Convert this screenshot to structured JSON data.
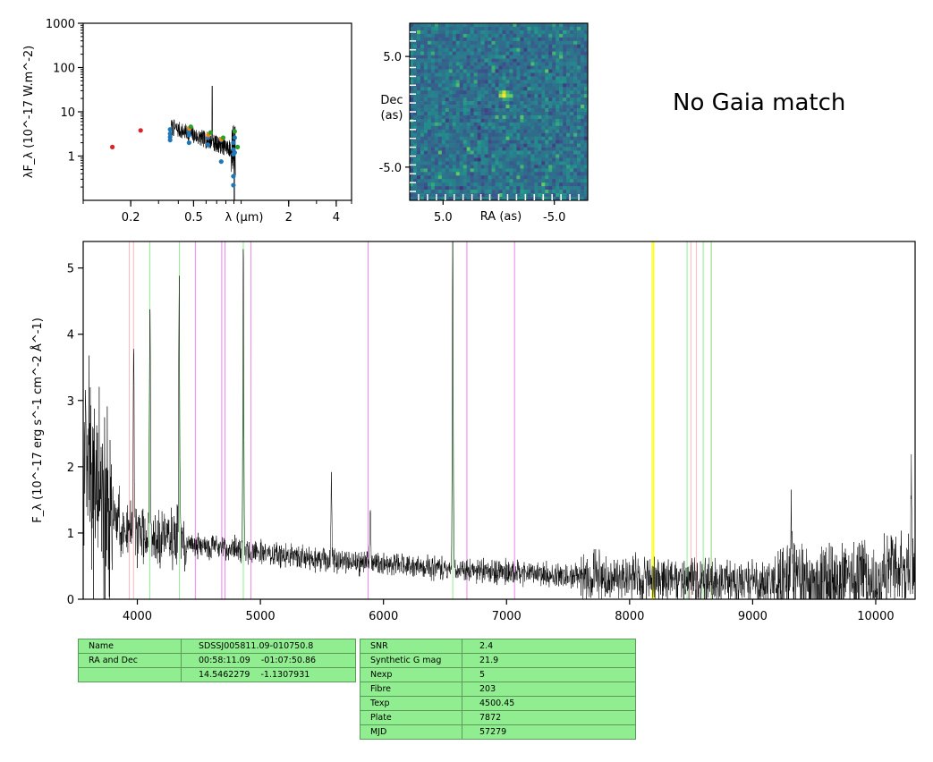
{
  "sed": {
    "xlabel": "λ (μm)",
    "ylabel": "λF_λ (10^-17 W.m^-2)",
    "xticks": [
      "0.2",
      "0.5",
      "2",
      "4"
    ],
    "xtick_values": [
      0.2,
      0.5,
      2,
      4
    ],
    "yticks": [
      "1",
      "10",
      "100",
      "1000"
    ],
    "ytick_values": [
      1,
      10,
      100,
      1000
    ],
    "xlim": [
      0.1,
      5
    ],
    "ylim": [
      0.1,
      1000
    ],
    "xscale": "log",
    "yscale": "log"
  },
  "cutout": {
    "xlabel": "RA (as)",
    "ylabel_line1": "Dec",
    "ylabel_line2": "(as)",
    "xticks": [
      "5.0",
      "-5.0"
    ],
    "xtick_values": [
      5.0,
      -5.0
    ],
    "yticks": [
      "5.0",
      "-5.0"
    ],
    "ytick_values": [
      5.0,
      -5.0
    ],
    "xlim": [
      8.0,
      -8.0
    ],
    "ylim": [
      -8.0,
      8.0
    ],
    "colormap": "viridis"
  },
  "gaia_text": "No Gaia match",
  "spectrum": {
    "xlabel": "",
    "ylabel": "F_λ (10^-17 erg s^-1 cm^-2 Å^-1)",
    "xticks": [
      "4000",
      "5000",
      "6000",
      "7000",
      "8000",
      "9000",
      "10000"
    ],
    "xtick_values": [
      4000,
      5000,
      6000,
      7000,
      8000,
      9000,
      10000
    ],
    "yticks": [
      "0",
      "1",
      "2",
      "3",
      "4",
      "5"
    ],
    "ytick_values": [
      0,
      1,
      2,
      3,
      4,
      5
    ],
    "xlim": [
      3560,
      10320
    ],
    "ylim": [
      0,
      5.4
    ]
  },
  "info_table_1": [
    {
      "key": "Name",
      "value": "SDSSJ005811.09-010750.8"
    },
    {
      "key": "RA and Dec",
      "value": "00:58:11.09    -01:07:50.86"
    },
    {
      "key": "",
      "value": "14.5462279    -1.1307931"
    }
  ],
  "info_table_2": [
    {
      "key": "SNR",
      "value": "2.4"
    },
    {
      "key": "Synthetic G mag",
      "value": "21.9"
    },
    {
      "key": "Nexp",
      "value": "5"
    },
    {
      "key": "Fibre",
      "value": "203"
    },
    {
      "key": "Texp",
      "value": "4500.45"
    },
    {
      "key": "Plate",
      "value": "7872"
    },
    {
      "key": "MJD",
      "value": "57279"
    }
  ],
  "colors": {
    "line_red": "#ffb6c1",
    "line_green": "#90ee90",
    "line_violet": "#ee82ee",
    "line_yellow": "#ffff00",
    "table_bg": "#90ee90",
    "sed_red": "#d62728",
    "sed_blue": "#1f77b4",
    "sed_orange": "#ff7f0e",
    "sed_green": "#2ca02c"
  },
  "chart_data": [
    {
      "type": "scatter",
      "xscale": "log",
      "yscale": "log",
      "xlim": [
        0.1,
        5
      ],
      "ylim": [
        0.1,
        1000
      ],
      "series": [
        {
          "color": "red",
          "x": [
            0.153,
            0.231
          ],
          "y": [
            1.6,
            3.8
          ]
        },
        {
          "color": "blue",
          "x": [
            0.355,
            0.355,
            0.355,
            0.355,
            0.468,
            0.468,
            0.468,
            0.617,
            0.617,
            0.748,
            0.748,
            0.893,
            0.893,
            0.893,
            0.893,
            0.893,
            0.91,
            0.91
          ],
          "y": [
            2.3,
            2.7,
            3.2,
            4.0,
            2.0,
            3.0,
            3.6,
            1.8,
            2.6,
            0.75,
            2.3,
            1.1,
            1.4,
            2.0,
            0.35,
            0.22,
            1.2,
            2.6
          ]
        },
        {
          "color": "orange",
          "x": [
            0.47,
            0.62,
            0.75
          ],
          "y": [
            4.2,
            3.0,
            2.4
          ]
        },
        {
          "color": "green",
          "x": [
            0.48,
            0.64,
            0.77,
            0.91,
            0.95
          ],
          "y": [
            4.6,
            3.4,
            2.6,
            3.6,
            1.6
          ]
        }
      ]
    },
    {
      "type": "heatmap",
      "xlim": [
        8.0,
        -8.0
      ],
      "ylim": [
        -8.0,
        8.0
      ],
      "source_position": [
        -0.5,
        1.5
      ]
    },
    {
      "type": "line",
      "xlim": [
        3560,
        10320
      ],
      "ylim": [
        0,
        5.4
      ],
      "continuum_x": [
        3600,
        3800,
        4000,
        4500,
        5000,
        5500,
        6000,
        6500,
        7000,
        7500,
        8000,
        8500,
        9000,
        9500,
        10000,
        10300
      ],
      "continuum_y": [
        1.9,
        1.25,
        1.0,
        0.82,
        0.7,
        0.6,
        0.52,
        0.46,
        0.4,
        0.36,
        0.32,
        0.28,
        0.25,
        0.3,
        0.35,
        0.4
      ],
      "emission_lines": [
        {
          "x": 3970,
          "y": 3.8
        },
        {
          "x": 4102,
          "y": 4.45
        },
        {
          "x": 4340,
          "y": 4.75
        },
        {
          "x": 4861,
          "y": 5.4
        },
        {
          "x": 5577,
          "y": 1.8
        },
        {
          "x": 5893,
          "y": 1.45
        },
        {
          "x": 6563,
          "y": 5.4
        },
        {
          "x": 9313,
          "y": 1.6
        },
        {
          "x": 10290,
          "y": 1.9
        }
      ],
      "vertical_lines": [
        {
          "x": 3934,
          "color": "red"
        },
        {
          "x": 3969,
          "color": "red"
        },
        {
          "x": 4102,
          "color": "green"
        },
        {
          "x": 4341,
          "color": "green"
        },
        {
          "x": 4471,
          "color": "violet"
        },
        {
          "x": 4686,
          "color": "violet"
        },
        {
          "x": 4713,
          "color": "violet"
        },
        {
          "x": 4861,
          "color": "green"
        },
        {
          "x": 4922,
          "color": "violet"
        },
        {
          "x": 5876,
          "color": "violet"
        },
        {
          "x": 6563,
          "color": "green"
        },
        {
          "x": 6678,
          "color": "violet"
        },
        {
          "x": 7065,
          "color": "violet"
        },
        {
          "x": 8183,
          "color": "yellow"
        },
        {
          "x": 8195,
          "color": "yellow"
        },
        {
          "x": 8467,
          "color": "green"
        },
        {
          "x": 8498,
          "color": "red"
        },
        {
          "x": 8542,
          "color": "red"
        },
        {
          "x": 8598,
          "color": "green"
        },
        {
          "x": 8662,
          "color": "red"
        },
        {
          "x": 8665,
          "color": "green"
        }
      ]
    }
  ]
}
